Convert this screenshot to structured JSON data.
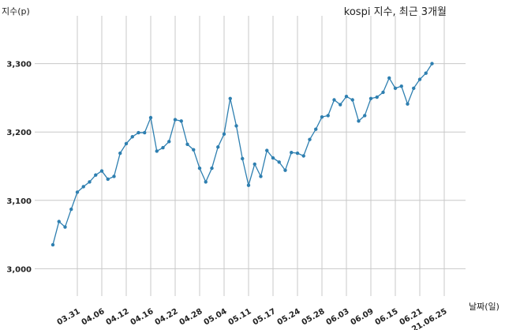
{
  "chart_data": {
    "type": "line",
    "title": "kospi 지수, 최근 3개월",
    "ylabel": "지수(p)",
    "xlabel": "날짜(일)",
    "ylim": [
      2960,
      3370
    ],
    "yticks": [
      3000,
      3100,
      3200,
      3300
    ],
    "ytick_labels": [
      "3,000",
      "3,100",
      "3,200",
      "3,300"
    ],
    "grid": true,
    "series_color": "#2e7fb0",
    "x_tick_labels": [
      "03.31",
      "04.06",
      "04.12",
      "04.16",
      "04.22",
      "04.28",
      "05.04",
      "05.11",
      "05.17",
      "05.24",
      "05.28",
      "06.03",
      "06.09",
      "06.15",
      "06.21",
      "21.06.25"
    ],
    "x_tick_index": [
      4,
      8,
      12,
      16,
      20,
      24,
      28,
      32,
      36,
      40,
      44,
      48,
      52,
      56,
      60,
      64
    ],
    "values": [
      3035,
      3069,
      3061,
      3087,
      3112,
      3120,
      3127,
      3137,
      3143,
      3131,
      3135,
      3169,
      3183,
      3193,
      3199,
      3199,
      3221,
      3172,
      3177,
      3186,
      3218,
      3216,
      3182,
      3174,
      3147,
      3127,
      3147,
      3178,
      3197,
      3249,
      3209,
      3161,
      3122,
      3153,
      3135,
      3173,
      3162,
      3156,
      3144,
      3170,
      3169,
      3165,
      3189,
      3204,
      3222,
      3224,
      3247,
      3240,
      3252,
      3247,
      3216,
      3224,
      3249,
      3251,
      3258,
      3279,
      3264,
      3267,
      3241,
      3264,
      3277,
      3286,
      3300
    ]
  }
}
